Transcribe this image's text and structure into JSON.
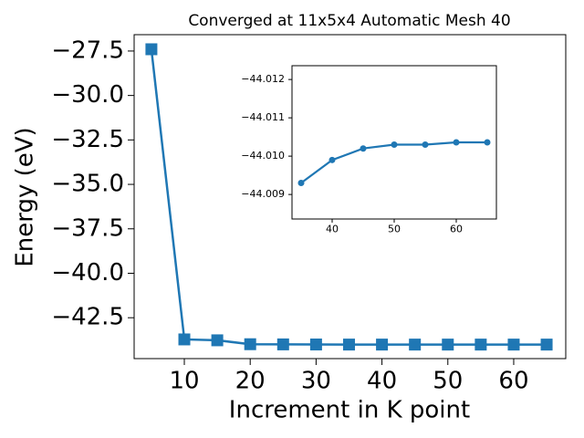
{
  "chart_data": [
    {
      "type": "line",
      "title": "Converged at 11x5x4 Automatic Mesh 40",
      "x_label": "Increment in K point",
      "y_label": "Energy (eV)",
      "x": [
        5,
        10,
        15,
        20,
        25,
        30,
        35,
        40,
        45,
        50,
        55,
        60,
        65
      ],
      "series": [
        {
          "color": "#1f77b4",
          "marker": "square",
          "values": [
            -27.4,
            -43.72,
            -43.77,
            -43.99,
            -44.0,
            -44.005,
            -44.0093,
            -44.0099,
            -44.0102,
            -44.0103,
            -44.0103,
            -44.01036,
            -44.01036
          ]
        }
      ],
      "xlim": [
        2.38,
        67.9
      ],
      "ylim": [
        -44.8,
        -26.58
      ],
      "xticks": [
        10,
        20,
        30,
        40,
        50,
        60
      ],
      "yticks": [
        {
          "value": -27.5,
          "label": "−27.5"
        },
        {
          "value": -30.0,
          "label": "−30.0"
        },
        {
          "value": -32.5,
          "label": "−32.5"
        },
        {
          "value": -35.0,
          "label": "−35.0"
        },
        {
          "value": -37.5,
          "label": "−37.5"
        },
        {
          "value": -40.0,
          "label": "−40.0"
        },
        {
          "value": -42.5,
          "label": "−42.5"
        }
      ]
    },
    {
      "type": "line",
      "x": [
        35,
        40,
        45,
        50,
        55,
        60,
        65
      ],
      "series": [
        {
          "color": "#1f77b4",
          "marker": "circle",
          "values": [
            -44.0093,
            -44.0099,
            -44.0102,
            -44.0103,
            -44.0103,
            -44.01036,
            -44.01036
          ]
        }
      ],
      "xlim": [
        33.53,
        66.47
      ],
      "ylim": [
        -44.00836,
        -44.01236
      ],
      "xticks": [
        40,
        50,
        60
      ],
      "yticks": [
        {
          "value": -44.012,
          "label": "−44.012"
        },
        {
          "value": -44.011,
          "label": "−44.011"
        },
        {
          "value": -44.01,
          "label": "−44.010"
        },
        {
          "value": -44.009,
          "label": "−44.009"
        }
      ]
    }
  ]
}
